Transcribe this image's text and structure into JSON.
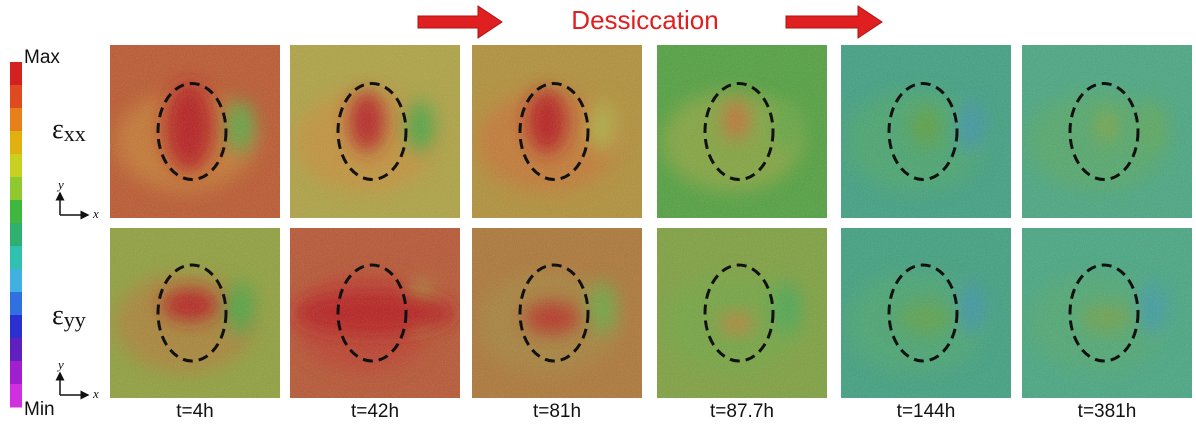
{
  "header": {
    "title": "Dessiccation"
  },
  "colorbar": {
    "max": "Max",
    "min": "Min"
  },
  "rows": [
    {
      "symbol": "ε",
      "subscript": "xx"
    },
    {
      "symbol": "ε",
      "subscript": "yy"
    }
  ],
  "axes": {
    "y": "y",
    "x": "x"
  },
  "columns": [
    "t=4h",
    "t=42h",
    "t=81h",
    "t=87.7h",
    "t=144h",
    "t=381h"
  ]
}
